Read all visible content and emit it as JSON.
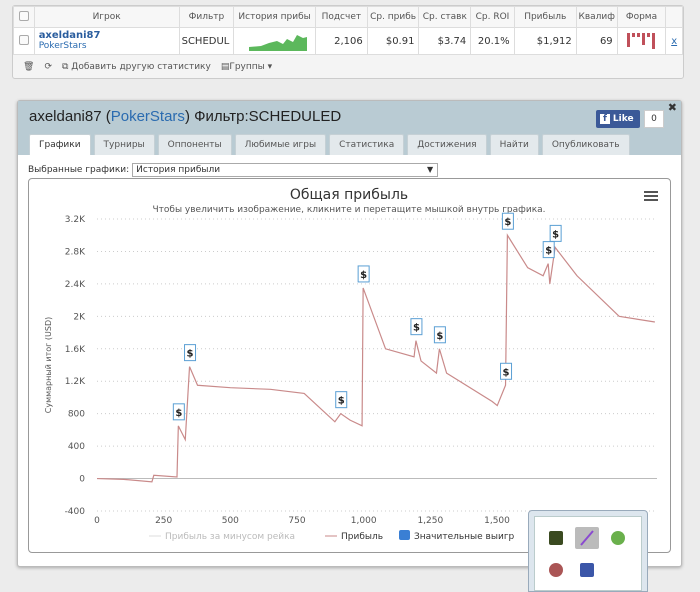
{
  "table": {
    "headers": [
      "Игрок",
      "Фильтр",
      "История прибы",
      "Подсчет",
      "Ср. прибь",
      "Ср. ставк",
      "Ср. ROI",
      "Прибыль",
      "Квалиф",
      "Форма"
    ],
    "row": {
      "player": "axeldani87",
      "site": "PokerStars",
      "filter": "SCHEDUL",
      "count": "2,106",
      "avg_profit": "$0.91",
      "avg_stake": "$3.74",
      "roi": "20.1%",
      "profit": "$1,912",
      "qual": "69",
      "remove": "x"
    }
  },
  "toolbar": {
    "add_stat": "Добавить другую статистику",
    "groups": "Группы ▾"
  },
  "panel": {
    "player": "axeldani87",
    "site_open": " (",
    "site": "PokerStars",
    "site_close": ")",
    "filter": " Фильтр:SCHEDULED",
    "like": "Like",
    "like_count": "0",
    "tabs": [
      "Графики",
      "Турниры",
      "Оппоненты",
      "Любимые игры",
      "Статистика",
      "Достижения",
      "Найти",
      "Опубликовать"
    ],
    "selected_label": "Выбранные графики:",
    "selected_value": "История прибыли"
  },
  "chart_data": {
    "type": "line",
    "title": "Общая прибыль",
    "subtitle": "Чтобы увеличить изображение, кликните и перетащите мышкой внутрь графика.",
    "ylabel": "Суммарный итог (USD)",
    "xlim": [
      0,
      2100
    ],
    "ylim": [
      -400,
      3200
    ],
    "xticks": [
      "0",
      "250",
      "500",
      "750",
      "1,000",
      "1,250",
      "1,500"
    ],
    "yticks": [
      "-400",
      "0",
      "400",
      "800",
      "1.2K",
      "1.6K",
      "2K",
      "2.4K",
      "2.8K",
      "3.2K"
    ],
    "grid": true,
    "legend_position": "bottom",
    "legend": [
      "Прибыль за минусом рейка",
      "Прибыль",
      "Значительные выигр"
    ],
    "series": [
      {
        "name": "Прибыль",
        "color": "#c98a8a",
        "points": [
          [
            0,
            0
          ],
          [
            100,
            -10
          ],
          [
            206,
            -40
          ],
          [
            213,
            40
          ],
          [
            300,
            20
          ],
          [
            305,
            650
          ],
          [
            331,
            480
          ],
          [
            347,
            1380
          ],
          [
            377,
            1150
          ],
          [
            500,
            1120
          ],
          [
            650,
            1100
          ],
          [
            777,
            1050
          ],
          [
            892,
            700
          ],
          [
            914,
            800
          ],
          [
            949,
            720
          ],
          [
            994,
            650
          ],
          [
            998,
            2350
          ],
          [
            1082,
            1600
          ],
          [
            1189,
            1500
          ],
          [
            1196,
            1700
          ],
          [
            1215,
            1450
          ],
          [
            1273,
            1300
          ],
          [
            1284,
            1600
          ],
          [
            1311,
            1300
          ],
          [
            1482,
            950
          ],
          [
            1501,
            900
          ],
          [
            1532,
            1150
          ],
          [
            1539,
            3000
          ],
          [
            1615,
            2600
          ],
          [
            1673,
            2500
          ],
          [
            1692,
            2650
          ],
          [
            1698,
            2400
          ],
          [
            1718,
            2850
          ],
          [
            1800,
            2500
          ],
          [
            1958,
            2000
          ],
          [
            2092,
            1930
          ]
        ]
      }
    ],
    "big_wins": [
      [
        305,
        650
      ],
      [
        347,
        1380
      ],
      [
        914,
        800
      ],
      [
        998,
        2350
      ],
      [
        1196,
        1700
      ],
      [
        1284,
        1600
      ],
      [
        1532,
        1150
      ],
      [
        1539,
        3000
      ],
      [
        1692,
        2650
      ],
      [
        1718,
        2850
      ]
    ],
    "marker_symbol": "$"
  }
}
